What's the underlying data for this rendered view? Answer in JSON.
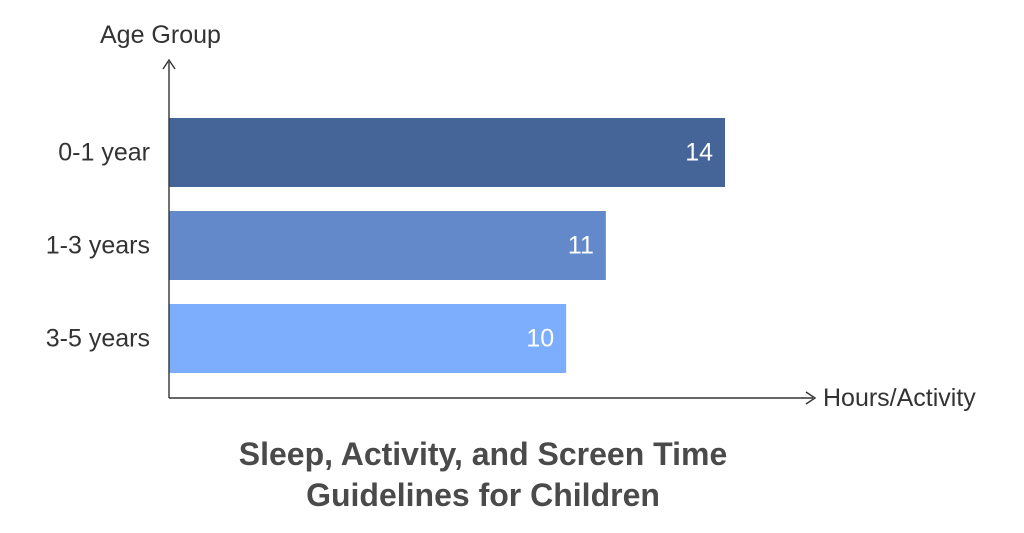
{
  "chart_data": {
    "type": "bar",
    "orientation": "horizontal",
    "title_lines": [
      "Sleep, Activity, and Screen Time",
      "Guidelines for Children"
    ],
    "xlabel": "Hours/Activity",
    "ylabel": "Age Group",
    "categories": [
      "0-1 year",
      "1-3 years",
      "3-5 years"
    ],
    "values": [
      14,
      11,
      10
    ],
    "colors": [
      "#456599",
      "#6389cb",
      "#7daefd"
    ],
    "xlim": [
      0,
      14
    ],
    "grid": false,
    "legend": "none"
  }
}
